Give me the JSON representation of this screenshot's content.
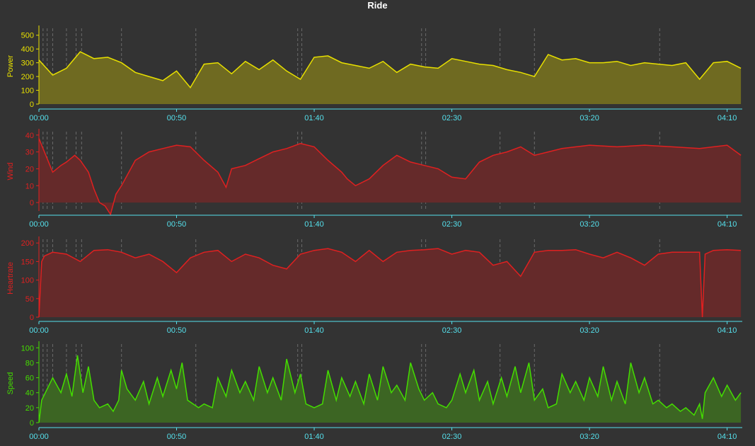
{
  "title": "Ride",
  "x_axis": {
    "min_minutes": 0,
    "max_minutes": 255.5,
    "tick_values": [
      0,
      50,
      100,
      150,
      200,
      250
    ],
    "tick_labels": [
      "00:00",
      "00:50",
      "01:40",
      "02:30",
      "03:20",
      "04:10"
    ],
    "color": "#55e0ec",
    "markers_minutes": [
      1.5,
      3,
      5,
      10,
      13.5,
      15.5,
      30,
      57,
      94,
      95.5,
      139,
      140.5,
      167.5,
      180,
      225.5
    ]
  },
  "chart_data": [
    {
      "type": "area",
      "ylabel": "Power",
      "color": "#e8e000",
      "fill": "#6f6a21",
      "ylim": [
        0,
        550
      ],
      "yticks": [
        0,
        100,
        200,
        300,
        400,
        500
      ],
      "x": [
        0,
        5,
        10,
        15,
        20,
        25,
        30,
        35,
        40,
        45,
        50,
        55,
        60,
        65,
        70,
        75,
        80,
        85,
        90,
        95,
        100,
        105,
        110,
        115,
        120,
        125,
        130,
        135,
        140,
        145,
        150,
        155,
        160,
        165,
        170,
        175,
        180,
        185,
        190,
        195,
        200,
        205,
        210,
        215,
        220,
        225,
        230,
        235,
        240,
        245,
        250,
        255
      ],
      "values": [
        320,
        210,
        260,
        380,
        330,
        340,
        300,
        230,
        200,
        170,
        240,
        120,
        290,
        300,
        220,
        310,
        250,
        320,
        240,
        180,
        340,
        350,
        300,
        280,
        260,
        310,
        230,
        290,
        270,
        260,
        330,
        310,
        290,
        280,
        250,
        230,
        200,
        360,
        320,
        330,
        300,
        300,
        310,
        280,
        300,
        290,
        280,
        300,
        180,
        300,
        310,
        260
      ]
    },
    {
      "type": "area",
      "ylabel": "Wind",
      "color": "#e02020",
      "fill": "#652a2a",
      "ylim": [
        -5,
        42
      ],
      "yticks": [
        0,
        10,
        20,
        30,
        40
      ],
      "x": [
        0,
        2,
        5,
        8,
        10,
        13,
        15,
        18,
        20,
        22,
        24,
        26,
        28,
        30,
        35,
        40,
        45,
        50,
        55,
        60,
        65,
        68,
        70,
        75,
        80,
        85,
        90,
        95,
        100,
        105,
        110,
        112,
        115,
        120,
        125,
        130,
        135,
        140,
        145,
        150,
        155,
        160,
        165,
        170,
        175,
        180,
        185,
        190,
        200,
        210,
        220,
        230,
        240,
        250,
        255
      ],
      "values": [
        38,
        30,
        18,
        22,
        24,
        28,
        25,
        18,
        8,
        0,
        -2,
        -7,
        5,
        10,
        25,
        30,
        32,
        34,
        33,
        25,
        18,
        9,
        20,
        22,
        26,
        30,
        32,
        35,
        33,
        25,
        18,
        14,
        10,
        14,
        22,
        28,
        24,
        22,
        20,
        15,
        14,
        24,
        28,
        30,
        33,
        28,
        30,
        32,
        34,
        33,
        34,
        33,
        32,
        34,
        28
      ]
    },
    {
      "type": "area",
      "ylabel": "Heartrate",
      "color": "#e02020",
      "fill": "#652a2a",
      "ylim": [
        0,
        210
      ],
      "yticks": [
        0,
        50,
        100,
        150,
        200
      ],
      "x": [
        0,
        1,
        2,
        5,
        10,
        15,
        20,
        25,
        30,
        35,
        40,
        45,
        50,
        55,
        60,
        65,
        70,
        75,
        80,
        85,
        90,
        95,
        100,
        105,
        110,
        115,
        120,
        125,
        130,
        135,
        140,
        145,
        150,
        155,
        160,
        165,
        170,
        175,
        180,
        185,
        190,
        195,
        200,
        205,
        210,
        215,
        220,
        225,
        230,
        235,
        240,
        241,
        242,
        245,
        250,
        255
      ],
      "values": [
        0,
        150,
        165,
        175,
        170,
        150,
        180,
        182,
        175,
        160,
        170,
        150,
        120,
        160,
        175,
        180,
        150,
        170,
        160,
        140,
        130,
        170,
        180,
        185,
        175,
        150,
        180,
        150,
        175,
        180,
        182,
        185,
        170,
        180,
        175,
        140,
        150,
        110,
        175,
        180,
        180,
        182,
        170,
        160,
        175,
        160,
        140,
        170,
        175,
        175,
        175,
        0,
        170,
        180,
        182,
        180
      ]
    },
    {
      "type": "area",
      "ylabel": "Speed",
      "color": "#44dd00",
      "fill": "#3c6523",
      "ylim": [
        0,
        105
      ],
      "yticks": [
        0,
        20,
        40,
        60,
        80,
        100
      ],
      "x": [
        0,
        1,
        3,
        5,
        8,
        10,
        12,
        14,
        16,
        18,
        20,
        22,
        25,
        27,
        29,
        30,
        32,
        35,
        38,
        40,
        43,
        45,
        48,
        50,
        52,
        54,
        56,
        58,
        60,
        63,
        65,
        68,
        70,
        73,
        75,
        78,
        80,
        83,
        85,
        88,
        90,
        93,
        95,
        97,
        100,
        103,
        105,
        108,
        110,
        113,
        115,
        118,
        120,
        123,
        125,
        128,
        130,
        133,
        135,
        138,
        140,
        143,
        145,
        148,
        150,
        153,
        155,
        158,
        160,
        163,
        165,
        168,
        170,
        173,
        175,
        178,
        180,
        183,
        185,
        188,
        190,
        193,
        195,
        198,
        200,
        203,
        205,
        208,
        210,
        213,
        215,
        218,
        220,
        223,
        225,
        228,
        230,
        233,
        235,
        238,
        240,
        241,
        242,
        245,
        248,
        250,
        253,
        255
      ],
      "values": [
        0,
        30,
        45,
        60,
        40,
        65,
        35,
        90,
        40,
        75,
        30,
        20,
        25,
        15,
        30,
        70,
        45,
        30,
        55,
        25,
        60,
        35,
        70,
        45,
        80,
        30,
        25,
        20,
        25,
        20,
        60,
        35,
        70,
        40,
        55,
        30,
        75,
        40,
        60,
        30,
        85,
        40,
        65,
        25,
        20,
        25,
        70,
        30,
        60,
        35,
        55,
        25,
        65,
        30,
        75,
        40,
        50,
        30,
        80,
        45,
        30,
        40,
        25,
        20,
        30,
        65,
        40,
        70,
        30,
        55,
        25,
        60,
        35,
        75,
        40,
        80,
        30,
        45,
        20,
        25,
        65,
        40,
        55,
        30,
        60,
        35,
        75,
        30,
        55,
        25,
        80,
        40,
        60,
        25,
        30,
        20,
        25,
        15,
        20,
        10,
        25,
        5,
        40,
        60,
        35,
        50,
        30,
        40
      ]
    }
  ]
}
